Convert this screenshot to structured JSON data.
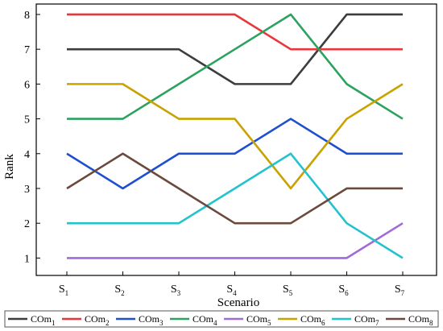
{
  "chart_data": {
    "type": "line",
    "xlabel": "Scenario",
    "ylabel": "Rank",
    "categories": [
      {
        "base": "S",
        "sub": "1"
      },
      {
        "base": "S",
        "sub": "2"
      },
      {
        "base": "S",
        "sub": "3"
      },
      {
        "base": "S",
        "sub": "4"
      },
      {
        "base": "S",
        "sub": "5"
      },
      {
        "base": "S",
        "sub": "6"
      },
      {
        "base": "S",
        "sub": "7"
      }
    ],
    "ylim": [
      0.5,
      8.3
    ],
    "yticks": [
      1,
      2,
      3,
      4,
      5,
      6,
      7,
      8
    ],
    "grid": false,
    "legend_position": "bottom",
    "series": [
      {
        "name": "COm",
        "sub": "1",
        "color": "#3d3d3d",
        "values": [
          7,
          7,
          7,
          6,
          6,
          8,
          8
        ]
      },
      {
        "name": "COm",
        "sub": "2",
        "color": "#e8363b",
        "values": [
          8,
          8,
          8,
          8,
          7,
          7,
          7
        ]
      },
      {
        "name": "COm",
        "sub": "3",
        "color": "#1f4fd1",
        "values": [
          4,
          3,
          4,
          4,
          5,
          4,
          4
        ]
      },
      {
        "name": "COm",
        "sub": "4",
        "color": "#2ca25f",
        "values": [
          5,
          5,
          6,
          7,
          8,
          6,
          5
        ]
      },
      {
        "name": "COm",
        "sub": "5",
        "color": "#a06bd6",
        "values": [
          1,
          1,
          1,
          1,
          1,
          1,
          2
        ]
      },
      {
        "name": "COm",
        "sub": "6",
        "color": "#c9a200",
        "values": [
          6,
          6,
          5,
          5,
          3,
          5,
          6
        ]
      },
      {
        "name": "COm",
        "sub": "7",
        "color": "#22c3cf",
        "values": [
          2,
          2,
          2,
          3,
          4,
          2,
          1
        ]
      },
      {
        "name": "COm",
        "sub": "8",
        "color": "#6b4a3e",
        "values": [
          3,
          4,
          3,
          2,
          2,
          3,
          3
        ]
      }
    ]
  }
}
